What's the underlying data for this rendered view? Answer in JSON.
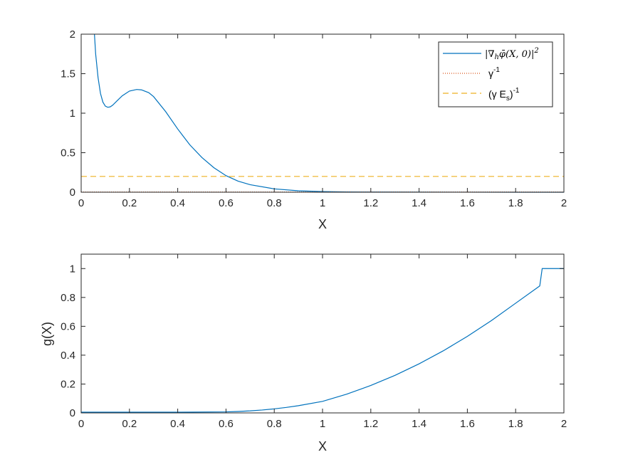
{
  "chart_data": [
    {
      "type": "line",
      "xlabel": "X",
      "ylabel": "",
      "xlim": [
        0,
        2
      ],
      "ylim": [
        0,
        2
      ],
      "xticks": [
        "0",
        "0.2",
        "0.4",
        "0.6",
        "0.8",
        "1",
        "1.2",
        "1.4",
        "1.6",
        "1.8",
        "2"
      ],
      "yticks": [
        "0",
        "0.5",
        "1",
        "1.5",
        "2"
      ],
      "grid": false,
      "legend_position": "top-right",
      "series": [
        {
          "name": "|∇hφ̄(X,0)|²",
          "style": "solid",
          "color": "#0072BD",
          "x": [
            0.055,
            0.06,
            0.07,
            0.08,
            0.09,
            0.1,
            0.11,
            0.12,
            0.13,
            0.15,
            0.17,
            0.2,
            0.23,
            0.25,
            0.28,
            0.3,
            0.35,
            0.4,
            0.45,
            0.5,
            0.55,
            0.6,
            0.65,
            0.7,
            0.8,
            0.9,
            1.0,
            1.1,
            1.2,
            1.4,
            1.6,
            1.8,
            2.0
          ],
          "y": [
            2.0,
            1.75,
            1.45,
            1.25,
            1.14,
            1.09,
            1.075,
            1.08,
            1.1,
            1.16,
            1.22,
            1.28,
            1.3,
            1.295,
            1.26,
            1.21,
            1.02,
            0.8,
            0.6,
            0.44,
            0.31,
            0.21,
            0.14,
            0.095,
            0.042,
            0.018,
            0.008,
            0.004,
            0.002,
            0.001,
            0.0005,
            0.0002,
            0.0001
          ]
        },
        {
          "name": "γ⁻¹",
          "style": "dotted",
          "color": "#D95319",
          "x": [
            0,
            2
          ],
          "y": [
            0.003,
            0.003
          ]
        },
        {
          "name": "(γ Eₛ)⁻¹",
          "style": "dashed",
          "color": "#EDB120",
          "x": [
            0,
            2
          ],
          "y": [
            0.2,
            0.2
          ]
        }
      ]
    },
    {
      "type": "line",
      "xlabel": "X",
      "ylabel": "g(X)",
      "xlim": [
        0,
        2
      ],
      "ylim": [
        0,
        1.1
      ],
      "xticks": [
        "0",
        "0.2",
        "0.4",
        "0.6",
        "0.8",
        "1",
        "1.2",
        "1.4",
        "1.6",
        "1.8",
        "2"
      ],
      "yticks": [
        "0",
        "0.2",
        "0.4",
        "0.6",
        "0.8",
        "1"
      ],
      "grid": false,
      "series": [
        {
          "style": "solid",
          "color": "#0072BD",
          "x": [
            0,
            0.2,
            0.4,
            0.6,
            0.65,
            0.7,
            0.75,
            0.8,
            0.85,
            0.9,
            1.0,
            1.1,
            1.2,
            1.3,
            1.4,
            1.5,
            1.6,
            1.7,
            1.8,
            1.9,
            1.91,
            2.0
          ],
          "y": [
            0.005,
            0.005,
            0.005,
            0.007,
            0.01,
            0.014,
            0.02,
            0.028,
            0.038,
            0.05,
            0.08,
            0.13,
            0.19,
            0.26,
            0.34,
            0.43,
            0.53,
            0.64,
            0.76,
            0.88,
            1.0,
            1.0
          ]
        }
      ]
    }
  ],
  "legend": {
    "math_label": "|∇",
    "math_sub": "h",
    "math_phi": "φ̄",
    "math_rest": "(X, 0)|",
    "math_sq": "2",
    "gamma_base": "γ",
    "gamma_sup": "-1",
    "es_base": "(γ E",
    "es_sub": "s",
    "es_close": ")",
    "es_sup": "-1"
  }
}
